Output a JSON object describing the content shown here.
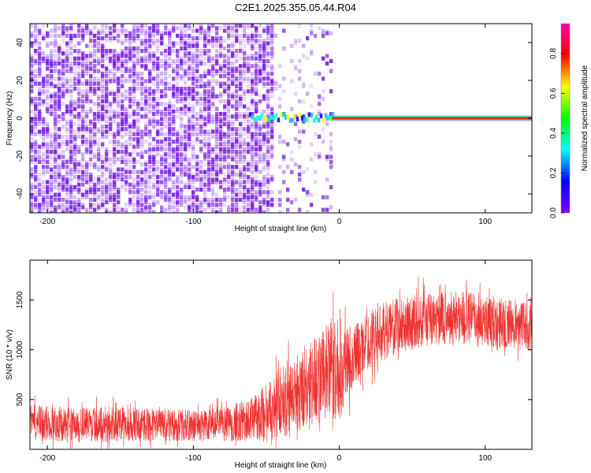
{
  "title": "C2E1.2025.355.05.44.R04",
  "colors": {
    "snr_line": "#ee3333",
    "axis": "#000000",
    "background": "#ffffff",
    "noise_purple": "#7a1ee6",
    "colorbar": [
      "#7f00ff",
      "#0000ff",
      "#00ffff",
      "#00ff00",
      "#ffff00",
      "#ff0000",
      "#ff00aa"
    ]
  },
  "chart_data": [
    {
      "type": "heatmap",
      "title": "",
      "xlabel": "Height of straight line (km)",
      "ylabel": "Frequency (Hz)",
      "xlim": [
        -212,
        132
      ],
      "ylim": [
        -50,
        50
      ],
      "xticks": [
        -200,
        -100,
        0,
        100
      ],
      "yticks": [
        -40,
        -20,
        0,
        20,
        40
      ],
      "colorbar": {
        "label": "Normalized spectral amplitude",
        "range": [
          0,
          0.95
        ],
        "ticks": [
          0.0,
          0.2,
          0.4,
          0.6,
          0.8
        ]
      },
      "features": {
        "noise_region_x": [
          -212,
          -45
        ],
        "sparse_noise_x": [
          -45,
          -5
        ],
        "signal_start_x": -62,
        "signal_line_x": [
          -5,
          132
        ],
        "signal_frequency_hz": 0
      }
    },
    {
      "type": "line",
      "title": "",
      "xlabel": "Height of straight line (km)",
      "ylabel": "SNR (10 * v/v)",
      "xlim": [
        -212,
        132
      ],
      "ylim": [
        0,
        1900
      ],
      "xticks": [
        -200,
        -100,
        0,
        100
      ],
      "yticks": [
        500,
        1000,
        1500
      ],
      "series": [
        {
          "name": "SNR",
          "x": [
            -212,
            -200,
            -180,
            -160,
            -140,
            -120,
            -100,
            -80,
            -60,
            -50,
            -40,
            -30,
            -20,
            -10,
            0,
            10,
            20,
            30,
            40,
            50,
            60,
            70,
            80,
            90,
            100,
            110,
            120,
            132
          ],
          "mean": [
            270,
            260,
            250,
            255,
            250,
            245,
            240,
            250,
            300,
            380,
            480,
            560,
            680,
            760,
            800,
            950,
            1080,
            1180,
            1240,
            1280,
            1300,
            1310,
            1320,
            1320,
            1300,
            1270,
            1250,
            1230
          ],
          "spread": [
            210,
            210,
            200,
            210,
            200,
            190,
            190,
            200,
            260,
            330,
            420,
            480,
            520,
            560,
            620,
            360,
            340,
            340,
            330,
            330,
            330,
            320,
            330,
            320,
            310,
            300,
            290,
            280
          ]
        }
      ]
    }
  ]
}
